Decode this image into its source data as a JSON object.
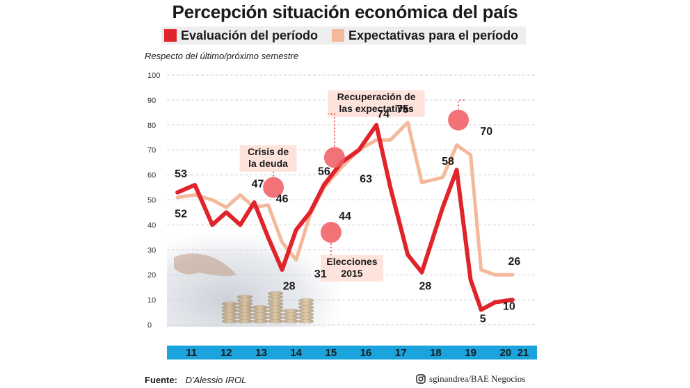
{
  "chart_data": {
    "type": "line",
    "title": "Percepción situación económica del país",
    "subtitle": "Respecto del último/próximo semestre",
    "ylim": [
      0,
      100
    ],
    "yticks": [
      0,
      10,
      20,
      30,
      40,
      50,
      60,
      70,
      80,
      90,
      100
    ],
    "x_labels": [
      "11",
      "12",
      "13",
      "14",
      "15",
      "16",
      "17",
      "18",
      "19",
      "20",
      "21"
    ],
    "x_label_positions": [
      11,
      12,
      13,
      14,
      15,
      16,
      17,
      18,
      19,
      20,
      20.5
    ],
    "xlim": [
      10.3,
      20.9
    ],
    "series": [
      {
        "name": "Evaluación del período",
        "color": "#e0242c",
        "x": [
          10.6,
          11.1,
          11.6,
          12.0,
          12.4,
          12.8,
          13.2,
          13.6,
          14.0,
          14.4,
          14.8,
          15.3,
          15.8,
          16.3,
          16.7,
          17.2,
          17.6,
          18.2,
          18.6,
          19.0,
          19.3,
          19.7,
          20.2
        ],
        "y": [
          53,
          56,
          40,
          45,
          40,
          49,
          35,
          22,
          38,
          45,
          56,
          65,
          70,
          80,
          55,
          28,
          21,
          47,
          62,
          18,
          6,
          9,
          10
        ]
      },
      {
        "name": "Expectativas para el período",
        "color": "#f4b89a",
        "x": [
          10.6,
          11.1,
          11.6,
          12.0,
          12.4,
          12.8,
          13.2,
          13.6,
          14.0,
          14.4,
          14.8,
          15.3,
          15.8,
          16.3,
          16.7,
          17.2,
          17.6,
          18.2,
          18.6,
          19.0,
          19.3,
          19.7,
          20.2
        ],
        "y": [
          51,
          52,
          50,
          47,
          52,
          47,
          48,
          33,
          26,
          44,
          55,
          63,
          70,
          74,
          74,
          81,
          57,
          59,
          72,
          68,
          22,
          20,
          20
        ]
      }
    ],
    "data_labels": [
      {
        "text": "53",
        "x": 10.7,
        "y": 59
      },
      {
        "text": "52",
        "x": 10.7,
        "y": 43
      },
      {
        "text": "47",
        "x": 12.9,
        "y": 55
      },
      {
        "text": "46",
        "x": 13.6,
        "y": 49
      },
      {
        "text": "28",
        "x": 13.8,
        "y": 14
      },
      {
        "text": "31",
        "x": 14.7,
        "y": 19
      },
      {
        "text": "56",
        "x": 14.8,
        "y": 60
      },
      {
        "text": "44",
        "x": 15.4,
        "y": 42
      },
      {
        "text": "63",
        "x": 16.0,
        "y": 57
      },
      {
        "text": "74",
        "x": 16.5,
        "y": 83
      },
      {
        "text": "75",
        "x": 17.05,
        "y": 85
      },
      {
        "text": "28",
        "x": 17.7,
        "y": 14
      },
      {
        "text": "58",
        "x": 18.35,
        "y": 64
      },
      {
        "text": "70",
        "x": 19.45,
        "y": 76
      },
      {
        "text": "5",
        "x": 19.35,
        "y": 1
      },
      {
        "text": "10",
        "x": 20.1,
        "y": 6
      },
      {
        "text": "26",
        "x": 20.25,
        "y": 24
      }
    ],
    "annotations": [
      {
        "lines": [
          "Crisis de",
          "la  deuda"
        ],
        "x": 13.2,
        "y": 68,
        "marker": [
          13.35,
          55
        ]
      },
      {
        "lines": [
          "Elecciones",
          "2015"
        ],
        "x": 15.6,
        "y": 24,
        "marker": [
          15.0,
          37
        ]
      },
      {
        "lines": [
          "Recuperación de",
          "las expectativas"
        ],
        "x": 16.3,
        "y": 90,
        "marker": [
          15.1,
          67
        ]
      },
      {
        "lines": [],
        "x": 18.3,
        "y": 90,
        "marker": [
          18.65,
          82
        ]
      }
    ],
    "grid": true,
    "legend": "top"
  },
  "footer": {
    "source_label": "Fuente:",
    "source": "D'Alessio IROL",
    "credit": "sginandrea/BAE Negocios"
  }
}
